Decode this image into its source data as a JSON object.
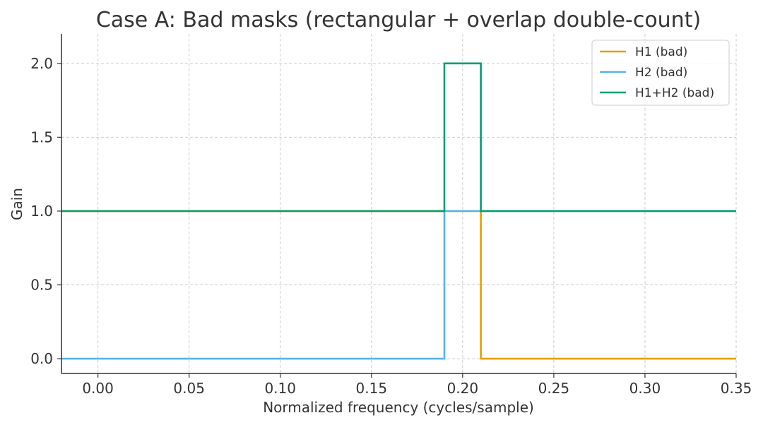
{
  "chart_data": {
    "type": "line",
    "title": "Case A: Bad masks (rectangular + overlap double-count)",
    "xlabel": "Normalized frequency (cycles/sample)",
    "ylabel": "Gain",
    "xlim": [
      -0.02,
      0.35
    ],
    "ylim": [
      -0.1,
      2.2
    ],
    "xticks": [
      0.0,
      0.05,
      0.1,
      0.15,
      0.2,
      0.25,
      0.3,
      0.35
    ],
    "xtick_labels": [
      "0.00",
      "0.05",
      "0.10",
      "0.15",
      "0.20",
      "0.25",
      "0.30",
      "0.35"
    ],
    "yticks": [
      0.0,
      0.5,
      1.0,
      1.5,
      2.0
    ],
    "ytick_labels": [
      "0.0",
      "0.5",
      "1.0",
      "1.5",
      "2.0"
    ],
    "grid": true,
    "legend_position": "top-right",
    "series": [
      {
        "name": "H1 (bad)",
        "color": "#E69F00",
        "x": [
          -0.02,
          0.21,
          0.21,
          0.35
        ],
        "y": [
          1.0,
          1.0,
          0.0,
          0.0
        ]
      },
      {
        "name": "H2 (bad)",
        "color": "#56B4E9",
        "x": [
          -0.02,
          0.19,
          0.19,
          0.35
        ],
        "y": [
          0.0,
          0.0,
          1.0,
          1.0
        ]
      },
      {
        "name": "H1+H2 (bad)",
        "color": "#009E73",
        "x": [
          -0.02,
          0.19,
          0.19,
          0.21,
          0.21,
          0.35
        ],
        "y": [
          1.0,
          1.0,
          2.0,
          2.0,
          1.0,
          1.0
        ]
      }
    ]
  }
}
